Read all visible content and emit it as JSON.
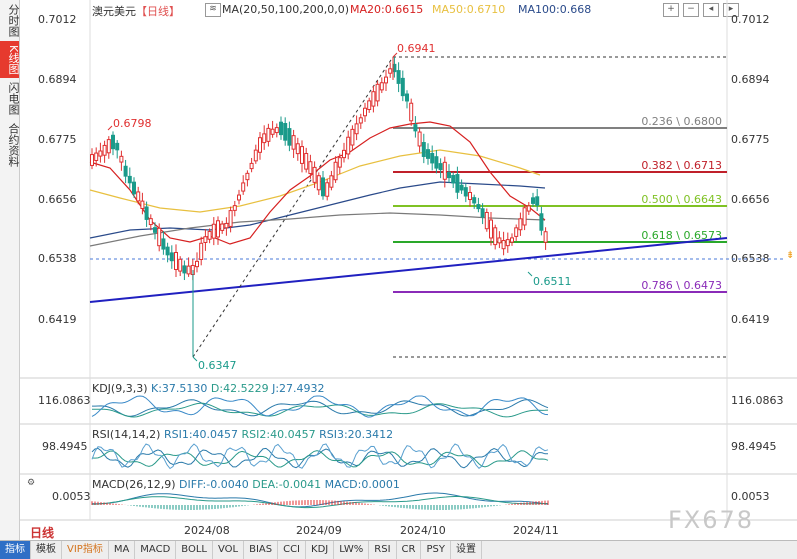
{
  "sidebar": {
    "items": [
      {
        "label": "分时图",
        "active": false
      },
      {
        "label": "K线图",
        "active": true
      },
      {
        "label": "闪电图",
        "active": false
      },
      {
        "label": "合约资料",
        "active": false
      }
    ]
  },
  "header": {
    "symbol": "澳元美元",
    "period": "【日线】",
    "ma_label": "MA(20,50,100,200,0,0)",
    "ma20": "MA20:0.6615",
    "ma50": "MA50:0.6710",
    "ma100": "MA100:0.668"
  },
  "price_axis": [
    "0.7012",
    "0.6894",
    "0.6775",
    "0.6656",
    "0.6538",
    "0.6419"
  ],
  "fib": [
    {
      "label": "0.236 \\ 0.6800",
      "color": "#808080"
    },
    {
      "label": "0.382 \\ 0.6713",
      "color": "#c0202a"
    },
    {
      "label": "0.500 \\ 0.6643",
      "color": "#7fc224"
    },
    {
      "label": "0.618 \\ 0.6573",
      "color": "#2aa82a"
    },
    {
      "label": "0.786 \\ 0.6473",
      "color": "#8a2bb8"
    }
  ],
  "annotations": {
    "high": "0.6941",
    "left_high": "0.6798",
    "low": "0.6347",
    "recent_low": "0.6511"
  },
  "kdj": {
    "title": "KDJ(9,3,3)",
    "k": "K:37.5130",
    "d": "D:42.5229",
    "j": "J:27.4932",
    "axis": "116.0863"
  },
  "rsi": {
    "title": "RSI(14,14,2)",
    "rsi1": "RSI1:40.0457",
    "rsi2": "RSI2:40.0457",
    "rsi3": "RSI3:20.3412",
    "axis": "98.4945"
  },
  "macd": {
    "title": "MACD(26,12,9)",
    "diff": "DIFF:-0.0040",
    "dea": "DEA:-0.0041",
    "macd": "MACD:0.0001",
    "axis": "0.0053"
  },
  "xaxis": [
    "2024/08",
    "2024/09",
    "2024/10",
    "2024/11"
  ],
  "period_tab": "日线",
  "bottom_tabs": [
    "指标",
    "模板",
    "VIP指标",
    "MA",
    "MACD",
    "BOLL",
    "VOL",
    "BIAS",
    "CCI",
    "KDJ",
    "LW%",
    "RSI",
    "CR",
    "PSY",
    "设置"
  ],
  "watermark": "FX678",
  "colors": {
    "up": "#e03030",
    "down": "#1a9a8a",
    "ma20": "#d62020",
    "ma50": "#e8c040",
    "ma100": "#2a4a8a",
    "ma200": "#7a7a7a",
    "trend": "#2020c0"
  }
}
